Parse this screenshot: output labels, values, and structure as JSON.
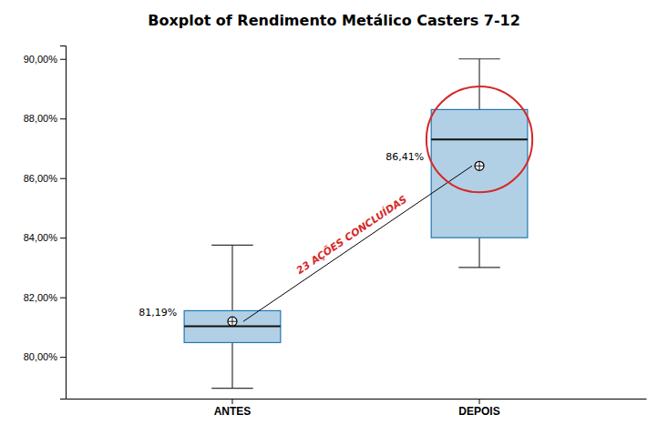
{
  "chart_data": {
    "type": "box",
    "title": "Boxplot of Rendimento Metálico Casters 7-12",
    "categories": [
      "ANTES",
      "DEPOIS"
    ],
    "boxes": [
      {
        "q1": 0.8048,
        "median": 0.8103,
        "q3": 0.8155,
        "mean": 0.8119,
        "whisker_low": 0.7895,
        "whisker_high": 0.8375,
        "mean_label": "81,19%"
      },
      {
        "q1": 0.84,
        "median": 0.873,
        "q3": 0.883,
        "mean": 0.8641,
        "whisker_low": 0.83,
        "whisker_high": 0.9,
        "mean_label": "86,41%"
      }
    ],
    "annotation": "23 AÇÕES CONCLUÍDAS",
    "ylim": [
      0.786,
      0.9045
    ],
    "yticks": [
      {
        "value": 0.8,
        "label": "80,00%"
      },
      {
        "value": 0.82,
        "label": "82,00%"
      },
      {
        "value": 0.84,
        "label": "84,00%"
      },
      {
        "value": 0.86,
        "label": "86,00%"
      },
      {
        "value": 0.88,
        "label": "88,00%"
      },
      {
        "value": 0.9,
        "label": "90,00%"
      }
    ],
    "grid": false
  }
}
